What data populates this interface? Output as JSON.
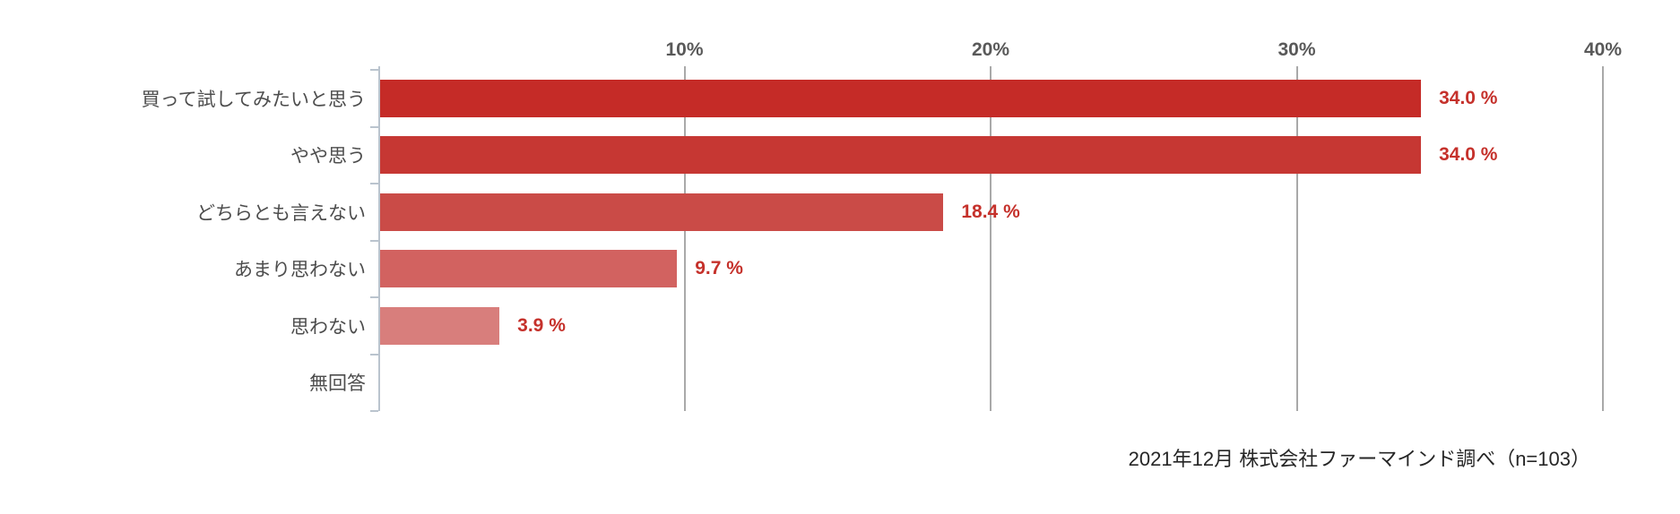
{
  "chart_data": {
    "type": "bar",
    "orientation": "horizontal",
    "title": "",
    "categories": [
      "買って試してみたいと思う",
      "やや思う",
      "どちらとも言えない",
      "あまり思わない",
      "思わない",
      "無回答"
    ],
    "values": [
      34.0,
      34.0,
      18.4,
      9.7,
      3.9,
      0
    ],
    "value_labels": [
      "34.0 %",
      "34.0 %",
      "18.4 %",
      "9.7 %",
      "3.9 %",
      ""
    ],
    "bar_colors": [
      "#c52b27",
      "#c63733",
      "#ca4b47",
      "#d26260",
      "#d87e7c",
      "#ffffff"
    ],
    "x_axis": {
      "position": "top",
      "min": 0,
      "max": 40,
      "ticks": [
        10,
        20,
        30,
        40
      ],
      "tick_labels": [
        "10%",
        "20%",
        "30%",
        "40%"
      ]
    },
    "grid": true,
    "legend": false
  },
  "footer": {
    "source": "2021年12月 株式会社ファーマインド調べ（n=103）"
  },
  "colors": {
    "background": "#ffffff",
    "gridline": "#a9a9a9",
    "axis": "#bac4ce",
    "tick_label": "#595959",
    "category_label": "#4d4d4d",
    "value_label": "#c5312b",
    "source_text": "#262626"
  }
}
